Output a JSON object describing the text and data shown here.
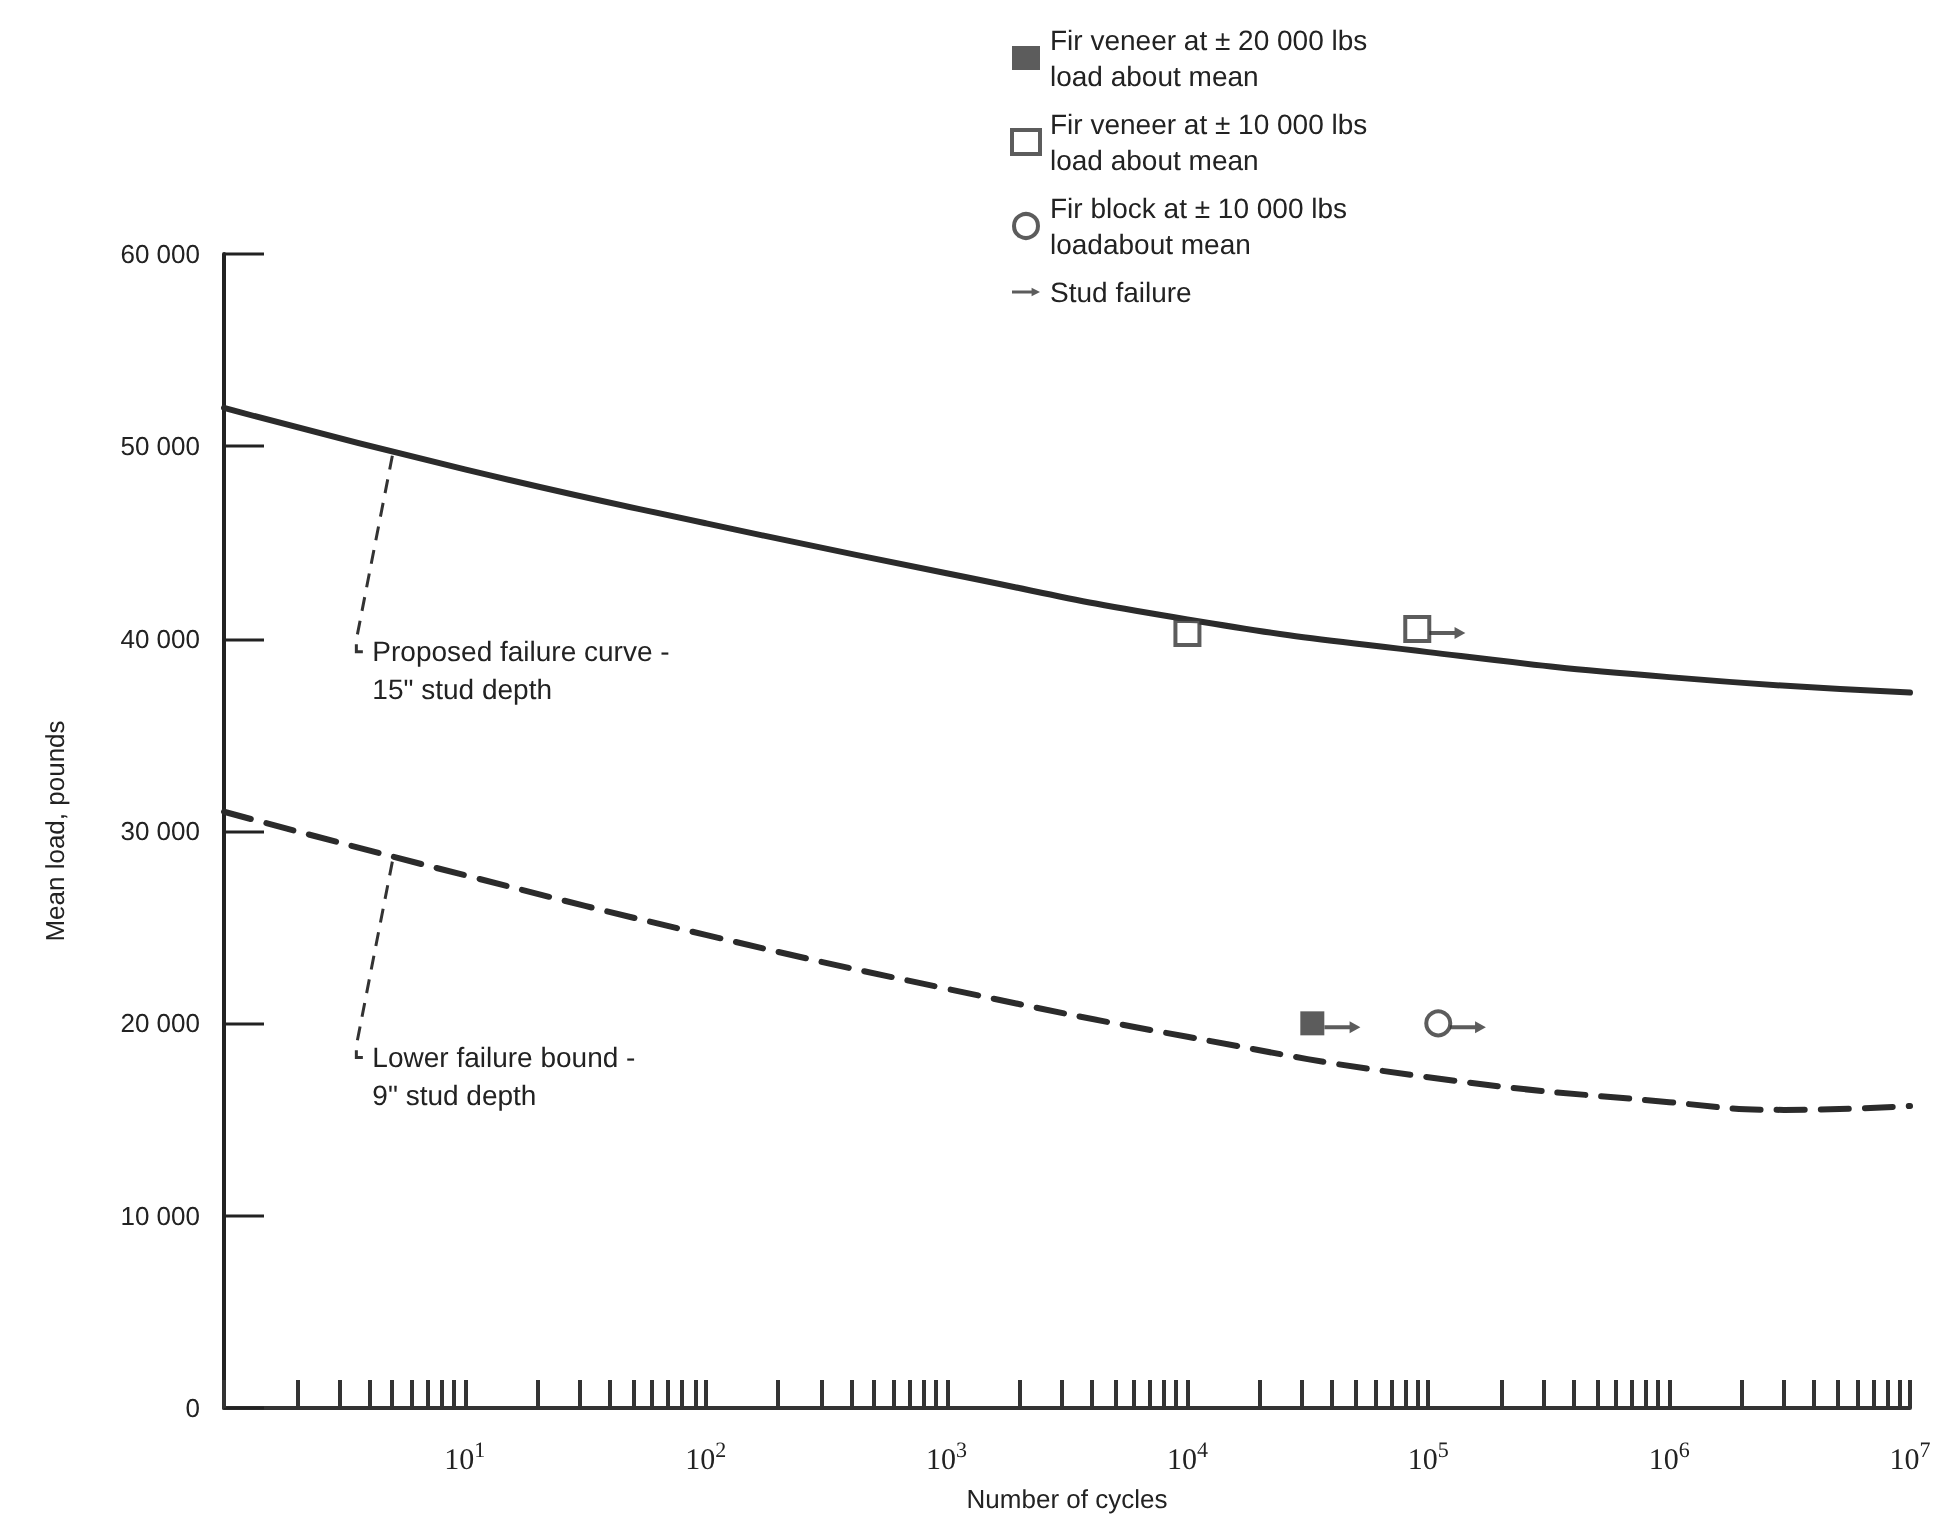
{
  "chart_data": {
    "type": "line",
    "xlabel": "Number of cycles",
    "ylabel": "Mean load, pounds",
    "log": "x",
    "xlim": [
      1,
      10000000
    ],
    "ylim": [
      0,
      60000
    ],
    "xticks": [
      {
        "value": 1,
        "label": null
      },
      {
        "value": 2,
        "label": null
      },
      {
        "value": 3,
        "label": null
      },
      {
        "value": 4,
        "label": null
      },
      {
        "value": 5,
        "label": null
      },
      {
        "value": 6,
        "label": null
      },
      {
        "value": 7,
        "label": null
      },
      {
        "value": 8,
        "label": null
      },
      {
        "value": 9,
        "label": null
      },
      {
        "value": 10,
        "label": "10$^{1}$"
      },
      {
        "value": 20,
        "label": null
      },
      {
        "value": 30,
        "label": null
      },
      {
        "value": 40,
        "label": null
      },
      {
        "value": 50,
        "label": null
      },
      {
        "value": 60,
        "label": null
      },
      {
        "value": 70,
        "label": null
      },
      {
        "value": 80,
        "label": null
      },
      {
        "value": 90,
        "label": null
      },
      {
        "value": 100,
        "label": "10$^{2}$"
      },
      {
        "value": 200,
        "label": null
      },
      {
        "value": 300,
        "label": null
      },
      {
        "value": 400,
        "label": null
      },
      {
        "value": 500,
        "label": null
      },
      {
        "value": 600,
        "label": null
      },
      {
        "value": 700,
        "label": null
      },
      {
        "value": 800,
        "label": null
      },
      {
        "value": 900,
        "label": null
      },
      {
        "value": 1000,
        "label": "10$^{3}$"
      },
      {
        "value": 2000,
        "label": null
      },
      {
        "value": 3000,
        "label": null
      },
      {
        "value": 4000,
        "label": null
      },
      {
        "value": 5000,
        "label": null
      },
      {
        "value": 6000,
        "label": null
      },
      {
        "value": 7000,
        "label": null
      },
      {
        "value": 8000,
        "label": null
      },
      {
        "value": 9000,
        "label": null
      },
      {
        "value": 10000,
        "label": "10$^{4}$"
      },
      {
        "value": 20000,
        "label": null
      },
      {
        "value": 30000,
        "label": null
      },
      {
        "value": 40000,
        "label": null
      },
      {
        "value": 50000,
        "label": null
      },
      {
        "value": 60000,
        "label": null
      },
      {
        "value": 70000,
        "label": null
      },
      {
        "value": 80000,
        "label": null
      },
      {
        "value": 90000,
        "label": null
      },
      {
        "value": 100000,
        "label": "10$^{5}$"
      },
      {
        "value": 200000,
        "label": null
      },
      {
        "value": 300000,
        "label": null
      },
      {
        "value": 400000,
        "label": null
      },
      {
        "value": 500000,
        "label": null
      },
      {
        "value": 600000,
        "label": null
      },
      {
        "value": 700000,
        "label": null
      },
      {
        "value": 800000,
        "label": null
      },
      {
        "value": 900000,
        "label": null
      },
      {
        "value": 1000000,
        "label": "10$^{6}$"
      },
      {
        "value": 2000000,
        "label": null
      },
      {
        "value": 3000000,
        "label": null
      },
      {
        "value": 4000000,
        "label": null
      },
      {
        "value": 5000000,
        "label": null
      },
      {
        "value": 6000000,
        "label": null
      },
      {
        "value": 7000000,
        "label": null
      },
      {
        "value": 8000000,
        "label": null
      },
      {
        "value": 9000000,
        "label": null
      },
      {
        "value": 10000000,
        "label": "10$^{7}$"
      }
    ],
    "yticks": [
      {
        "value": 0,
        "label": "0"
      },
      {
        "value": 10000,
        "label": "10 000"
      },
      {
        "value": 20000,
        "label": "20 000"
      },
      {
        "value": 30000,
        "label": "30 000"
      },
      {
        "value": 40000,
        "label": "40 000"
      },
      {
        "value": 50000,
        "label": "50 000"
      },
      {
        "value": 60000,
        "label": "60 000"
      }
    ],
    "grid": false,
    "legend": "top",
    "series": [
      {
        "type": "line",
        "line_style": "solid",
        "color": "#2b2b2b",
        "x": [
          1,
          10,
          100,
          1000,
          10000,
          100000,
          1000000,
          10000000
        ],
        "values": [
          52000,
          48800,
          46000,
          43400,
          41000,
          39300,
          38000,
          37200
        ]
      },
      {
        "type": "line",
        "line_style": "dashed",
        "color": "#2b2b2b",
        "x": [
          1,
          10,
          100,
          1000,
          10000,
          100000,
          1000000,
          3000000,
          10000000
        ],
        "values": [
          31000,
          27700,
          24600,
          21800,
          19300,
          17200,
          15900,
          15500,
          15700
        ]
      },
      {
        "type": "scatter",
        "name": "Fir veneer at ± 20 000 lbs\nload about mean",
        "marker": "square",
        "color": "#333333",
        "x": [
          33000
        ],
        "values": [
          20000
        ]
      },
      {
        "type": "scatter",
        "name": "Fir veneer at ± 10 000 lbs\nload about mean",
        "marker": "square-open",
        "color": "#333333",
        "x": [
          10000,
          90000
        ],
        "values": [
          40300,
          40500
        ]
      },
      {
        "type": "scatter",
        "name": "Fir block at ± 10 000 lbs\nloadabout mean",
        "marker": "circle-open",
        "color": "#333333",
        "x": [
          110000
        ],
        "values": [
          20000
        ]
      },
      {
        "type": "scatter",
        "name": "Stud failure",
        "color": "#333333",
        "x": [
          44000,
          120000,
          146000
        ],
        "values": [
          19800,
          40300,
          19800
        ]
      }
    ],
    "annotations": [
      {
        "text": "Proposed failure curve -\n15\" stud depth",
        "x": 5,
        "y": 49300
      },
      {
        "text": "Lower failure bound -\n9\" stud depth",
        "x": 5,
        "y": 28200
      }
    ]
  }
}
